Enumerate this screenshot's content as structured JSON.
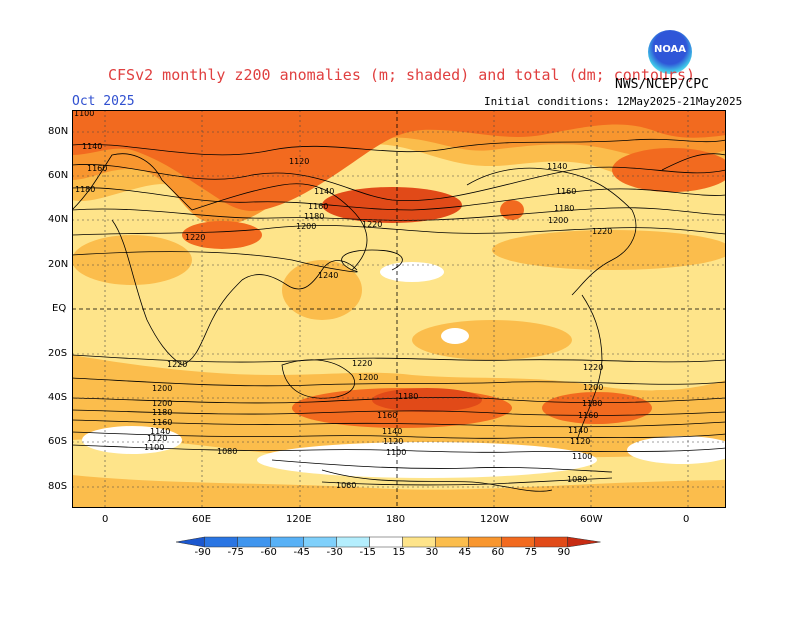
{
  "header": {
    "title": "CFSv2 monthly z200 anomalies (m; shaded) and total (dm; contours)",
    "credit": "NWS/NCEP/CPC",
    "month": "Oct 2025",
    "initial_conditions": "Initial conditions: 12May2025-21May2025",
    "logo_text": "NOAA"
  },
  "map": {
    "lat_labels": [
      "80N",
      "60N",
      "40N",
      "20N",
      "EQ",
      "20S",
      "40S",
      "60S",
      "80S"
    ],
    "lon_labels": [
      "0",
      "60E",
      "120E",
      "180",
      "120W",
      "60W",
      "0"
    ],
    "contour_labels": {
      "nh": [
        "1140",
        "1160",
        "1180",
        "1120",
        "1140",
        "1160",
        "1180",
        "1200",
        "1220",
        "1220",
        "1240",
        "1140",
        "1160",
        "1180",
        "1200",
        "1220",
        "1100"
      ],
      "sh": [
        "1220",
        "1200",
        "1200",
        "1180",
        "1160",
        "1140",
        "1120",
        "1100",
        "1080",
        "1060",
        "1220",
        "1200",
        "1180",
        "1160",
        "1140",
        "1120",
        "1100",
        "1080",
        "1180",
        "1160",
        "1140",
        "1120",
        "1100",
        "1220",
        "1200"
      ]
    },
    "colors": {
      "c15_30": "#fee48a",
      "c30_45": "#fbbd4c",
      "c45_60": "#f8962f",
      "c60_75": "#f26a1f",
      "c75_90": "#e14a18",
      "neutral": "#ffffff"
    }
  },
  "colorbar": {
    "labels": [
      "-90",
      "-75",
      "-60",
      "-45",
      "-30",
      "-15",
      "15",
      "30",
      "45",
      "60",
      "75",
      "90"
    ],
    "colors": [
      "#1b57cf",
      "#2a75e3",
      "#3f95ee",
      "#58b1f6",
      "#7fd0fb",
      "#b4eefd",
      "#ffffff",
      "#fee48a",
      "#fbbd4c",
      "#f8962f",
      "#f26a1f",
      "#e14a18",
      "#c72b12"
    ]
  }
}
